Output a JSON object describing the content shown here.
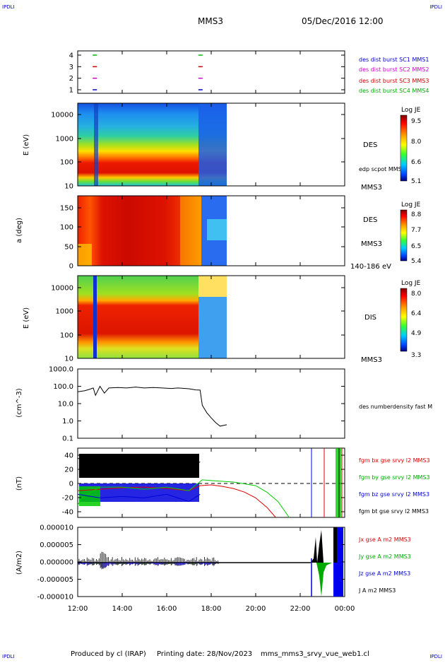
{
  "header": {
    "corner_left": "IPDLI",
    "corner_right": "IPDLI",
    "title": "MMS3",
    "datetime": "05/Dec/2016 12:00"
  },
  "footer": {
    "produced_by": "Produced by cl (IRAP)",
    "printing_date": "Printing date: 28/Nov/2023",
    "filename": "mms_mms3_srvy_vue_web1.cl",
    "corner_left": "IPDLI",
    "corner_right": "IPDLI"
  },
  "colors": {
    "mms1": "#0000cc",
    "mms2": "#cc00cc",
    "mms3": "#cc0000",
    "mms4": "#00bb00",
    "bx": "#dd0000",
    "by": "#00cc00",
    "bz": "#0000dd",
    "bt": "#000000"
  },
  "time_axis": {
    "ticks": [
      "12:00",
      "14:00",
      "16:00",
      "18:00",
      "20:00",
      "22:00",
      "00:00"
    ],
    "start_hour": 12,
    "end_hour": 24
  },
  "chart_data": [
    {
      "type": "scatter",
      "panel": "burst",
      "yticks": [
        "4",
        "3",
        "2",
        "1"
      ],
      "legend": [
        "des dist burst SC1 MMS1",
        "des dist burst SC2 MMS2",
        "des dist burst SC3 MMS3",
        "des dist burst SC4 MMS4"
      ],
      "ylim": [
        0.5,
        4.5
      ],
      "series": [
        {
          "sc": 4,
          "color": "mms4",
          "x": [
            12.8,
            17.55
          ]
        },
        {
          "sc": 3,
          "color": "mms3",
          "x": [
            12.8,
            17.55
          ]
        },
        {
          "sc": 2,
          "color": "mms2",
          "x": [
            12.8,
            17.55
          ]
        },
        {
          "sc": 1,
          "color": "mms1",
          "x": [
            12.8,
            17.55
          ]
        }
      ]
    },
    {
      "type": "heatmap",
      "panel": "des_energy",
      "ylabel": "E (eV)",
      "yticks": [
        "10000",
        "1000",
        "100",
        "10"
      ],
      "ylim": [
        10,
        30000
      ],
      "scale": "log",
      "labels": [
        "DES",
        "edp scpot MMS3",
        "MMS3"
      ],
      "colorbar": {
        "title": "Log JE",
        "ticks": [
          "9.5",
          "8.0",
          "6.6",
          "5.1"
        ]
      },
      "data_end_hour": 18.7
    },
    {
      "type": "heatmap",
      "panel": "des_pitch",
      "ylabel": "a (deg)",
      "yticks": [
        "150",
        "100",
        "50",
        "0"
      ],
      "ylim": [
        0,
        180
      ],
      "labels": [
        "DES",
        "MMS3",
        "140-186 eV"
      ],
      "colorbar": {
        "title": "Log JE",
        "ticks": [
          "8.8",
          "7.7",
          "6.5",
          "5.4"
        ]
      },
      "data_end_hour": 18.7
    },
    {
      "type": "heatmap",
      "panel": "dis_energy",
      "ylabel": "E (eV)",
      "yticks": [
        "10000",
        "1000",
        "100",
        "10"
      ],
      "ylim": [
        10,
        30000
      ],
      "scale": "log",
      "labels": [
        "DIS",
        "MMS3"
      ],
      "colorbar": {
        "title": "Log JE",
        "ticks": [
          "8.0",
          "6.4",
          "4.9",
          "3.3"
        ]
      },
      "data_end_hour": 18.7
    },
    {
      "type": "line",
      "panel": "density",
      "ylabel": "(cm^-3)",
      "yticks": [
        "1000.0",
        "100.0",
        "10.0",
        "1.0",
        "0.1"
      ],
      "ylim": [
        0.1,
        1000
      ],
      "scale": "log",
      "legend": [
        "des numberdensity fast M"
      ],
      "x": [
        12.0,
        12.3,
        12.5,
        12.7,
        12.8,
        13.0,
        13.2,
        13.4,
        13.8,
        14.2,
        14.6,
        15.0,
        15.4,
        15.8,
        16.2,
        16.5,
        17.0,
        17.3,
        17.5,
        17.6,
        17.8,
        18.0,
        18.2,
        18.4,
        18.7
      ],
      "values": [
        48,
        55,
        65,
        80,
        30,
        100,
        40,
        80,
        85,
        80,
        90,
        80,
        85,
        80,
        75,
        80,
        72,
        62,
        60,
        8,
        3,
        1.5,
        0.8,
        0.5,
        0.6
      ]
    },
    {
      "type": "line",
      "panel": "fgm",
      "ylabel": "(nT)",
      "yticks": [
        "40",
        "20",
        "0",
        "-20",
        "-40"
      ],
      "ylim": [
        -48,
        48
      ],
      "legend": [
        "fgm bx gse srvy l2 MMS3",
        "fgm by gse srvy l2 MMS3",
        "fgm bz gse srvy l2 MMS3",
        "fgm bt gse srvy l2 MMS3"
      ],
      "series": [
        {
          "name": "bx",
          "x": [
            12.0,
            13.0,
            14.0,
            15.0,
            16.0,
            17.0,
            17.5,
            18.0,
            18.5,
            19.0,
            19.5,
            20.0,
            20.5,
            20.9
          ],
          "values": [
            -10,
            -8,
            -6,
            -5,
            -7,
            -10,
            -3,
            -2,
            -4,
            -7,
            -12,
            -20,
            -33,
            -47
          ]
        },
        {
          "name": "by",
          "x": [
            12.0,
            12.2,
            13.0,
            14.0,
            15.0,
            16.0,
            17.0,
            17.6,
            18.0,
            19.0,
            20.0,
            20.5,
            21.0,
            21.5
          ],
          "values": [
            -30,
            -20,
            -5,
            -5,
            -8,
            -5,
            -10,
            5,
            4,
            2,
            -3,
            -12,
            -25,
            -47
          ]
        },
        {
          "name": "bz",
          "x": [
            12.0,
            13.0,
            14.0,
            15.0,
            16.0,
            17.0,
            17.5
          ],
          "values": [
            -15,
            -20,
            -18,
            -20,
            -15,
            -25,
            -15
          ]
        },
        {
          "name": "bt",
          "x": [
            12.0,
            12.5,
            13.0,
            14.0,
            15.0,
            16.0,
            17.0,
            17.5
          ],
          "values": [
            35,
            30,
            25,
            20,
            22,
            20,
            22,
            30
          ]
        }
      ]
    },
    {
      "type": "line",
      "panel": "current",
      "ylabel": "(A/m2)",
      "yticks": [
        "0.000010",
        "0.000005",
        "0.000000",
        "-0.000005",
        "-0.000010"
      ],
      "ylim": [
        -1e-05,
        1e-05
      ],
      "legend": [
        "Jx gse A m2 MMS3",
        "Jy gse A m2 MMS3",
        "Jz gse A m2 MMS3",
        "J A m2 MMS3"
      ]
    }
  ]
}
